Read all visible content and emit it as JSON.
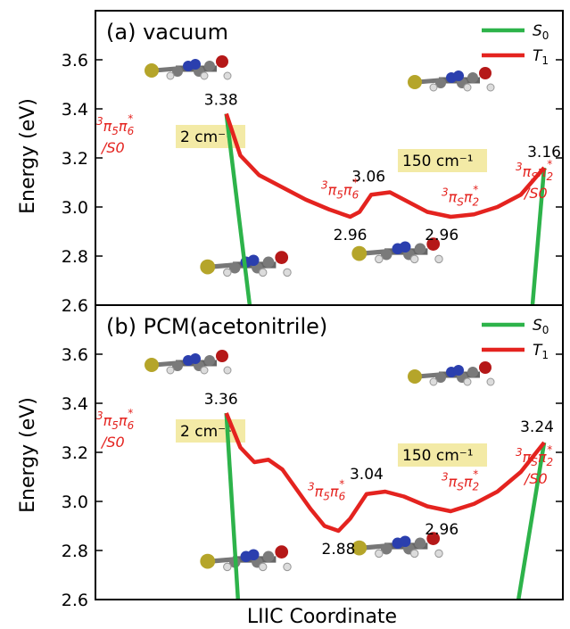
{
  "x_label": "LIIC Coordinate",
  "y_label": "Energy (eV)",
  "legend": [
    "S0",
    "T1"
  ],
  "colors": {
    "S0": "#2db34a",
    "T1": "#e4231f",
    "highlight": "#f3eaa6"
  },
  "chart_data": [
    {
      "type": "line",
      "title": "(a) vacuum",
      "ylim": [
        2.6,
        3.8
      ],
      "yticks": [
        "2.6",
        "2.8",
        "3.0",
        "3.2",
        "3.4",
        "3.6"
      ],
      "xlim": [
        0,
        1
      ],
      "series": [
        {
          "name": "S0",
          "segments": [
            {
              "x": [
                0.28,
                0.33
              ],
              "y": [
                3.38,
                2.6
              ]
            },
            {
              "x": [
                0.935,
                0.96
              ],
              "y": [
                2.6,
                3.16
              ]
            }
          ]
        },
        {
          "name": "T1",
          "x": [
            0.28,
            0.31,
            0.35,
            0.4,
            0.45,
            0.5,
            0.545,
            0.565,
            0.59,
            0.63,
            0.67,
            0.71,
            0.76,
            0.81,
            0.86,
            0.91,
            0.96
          ],
          "y": [
            3.38,
            3.21,
            3.13,
            3.08,
            3.03,
            2.99,
            2.96,
            2.98,
            3.05,
            3.06,
            3.02,
            2.98,
            2.96,
            2.97,
            3.0,
            3.05,
            3.16
          ]
        }
      ],
      "value_labels": [
        "3.38",
        "2.96",
        "3.06",
        "2.96",
        "3.16"
      ],
      "states": {
        "start_a": "3π5π6*",
        "start_b": "/S0",
        "min1": "3π5π6*",
        "min2": "3πSπ2*",
        "end_a": "3πSπ2*",
        "end_b": "/S0"
      },
      "boxes": [
        "2 cm⁻¹",
        "150 cm⁻¹"
      ]
    },
    {
      "type": "line",
      "title": "(b) PCM(acetonitrile)",
      "ylim": [
        2.6,
        3.8
      ],
      "yticks": [
        "2.6",
        "2.8",
        "3.0",
        "3.2",
        "3.4",
        "3.6"
      ],
      "xlim": [
        0,
        1
      ],
      "series": [
        {
          "name": "S0",
          "segments": [
            {
              "x": [
                0.28,
                0.305
              ],
              "y": [
                3.36,
                2.6
              ]
            },
            {
              "x": [
                0.905,
                0.96
              ],
              "y": [
                2.6,
                3.24
              ]
            }
          ]
        },
        {
          "name": "T1",
          "x": [
            0.28,
            0.31,
            0.34,
            0.37,
            0.4,
            0.43,
            0.46,
            0.49,
            0.52,
            0.545,
            0.58,
            0.62,
            0.66,
            0.71,
            0.76,
            0.81,
            0.86,
            0.91,
            0.96
          ],
          "y": [
            3.36,
            3.22,
            3.16,
            3.17,
            3.13,
            3.05,
            2.97,
            2.9,
            2.88,
            2.93,
            3.03,
            3.04,
            3.02,
            2.98,
            2.96,
            2.99,
            3.04,
            3.12,
            3.24
          ]
        }
      ],
      "value_labels": [
        "3.36",
        "2.88",
        "3.04",
        "2.96",
        "3.24"
      ],
      "states": {
        "start_a": "3π5π6*",
        "start_b": "/S0",
        "min1": "3π5π6*",
        "min2": "3πSπ2*",
        "end_a": "3πSπ2*",
        "end_b": "/S0"
      },
      "boxes": [
        "2 cm⁻¹",
        "150 cm⁻¹"
      ]
    }
  ]
}
